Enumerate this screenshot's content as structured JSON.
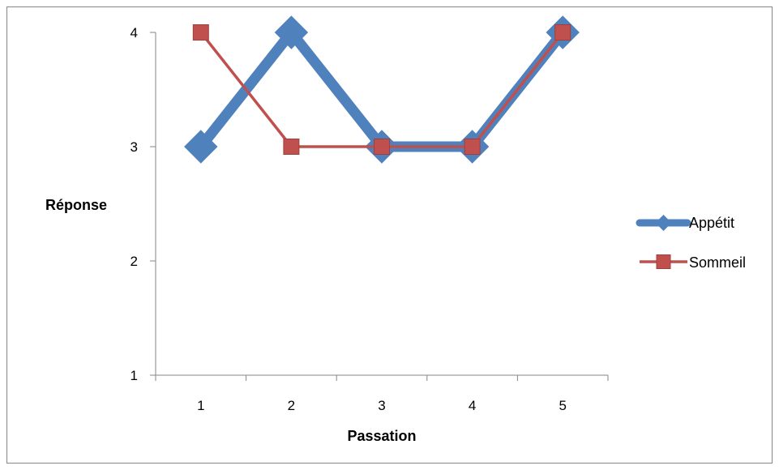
{
  "chart_data": {
    "type": "line",
    "x": [
      1,
      2,
      3,
      4,
      5
    ],
    "series": [
      {
        "name": "Appétit",
        "values": [
          3,
          4,
          3,
          3,
          4
        ],
        "color": "#4F81BD",
        "marker": "diamond"
      },
      {
        "name": "Sommeil",
        "values": [
          4,
          3,
          3,
          3,
          4
        ],
        "color": "#C0504D",
        "marker": "square"
      }
    ],
    "xlabel": "Passation",
    "ylabel": "Réponse",
    "ylim": [
      1,
      4
    ],
    "yticks": [
      1,
      2,
      3,
      4
    ],
    "xticks": [
      1,
      2,
      3,
      4,
      5
    ],
    "grid": false,
    "legend_position": "right"
  }
}
